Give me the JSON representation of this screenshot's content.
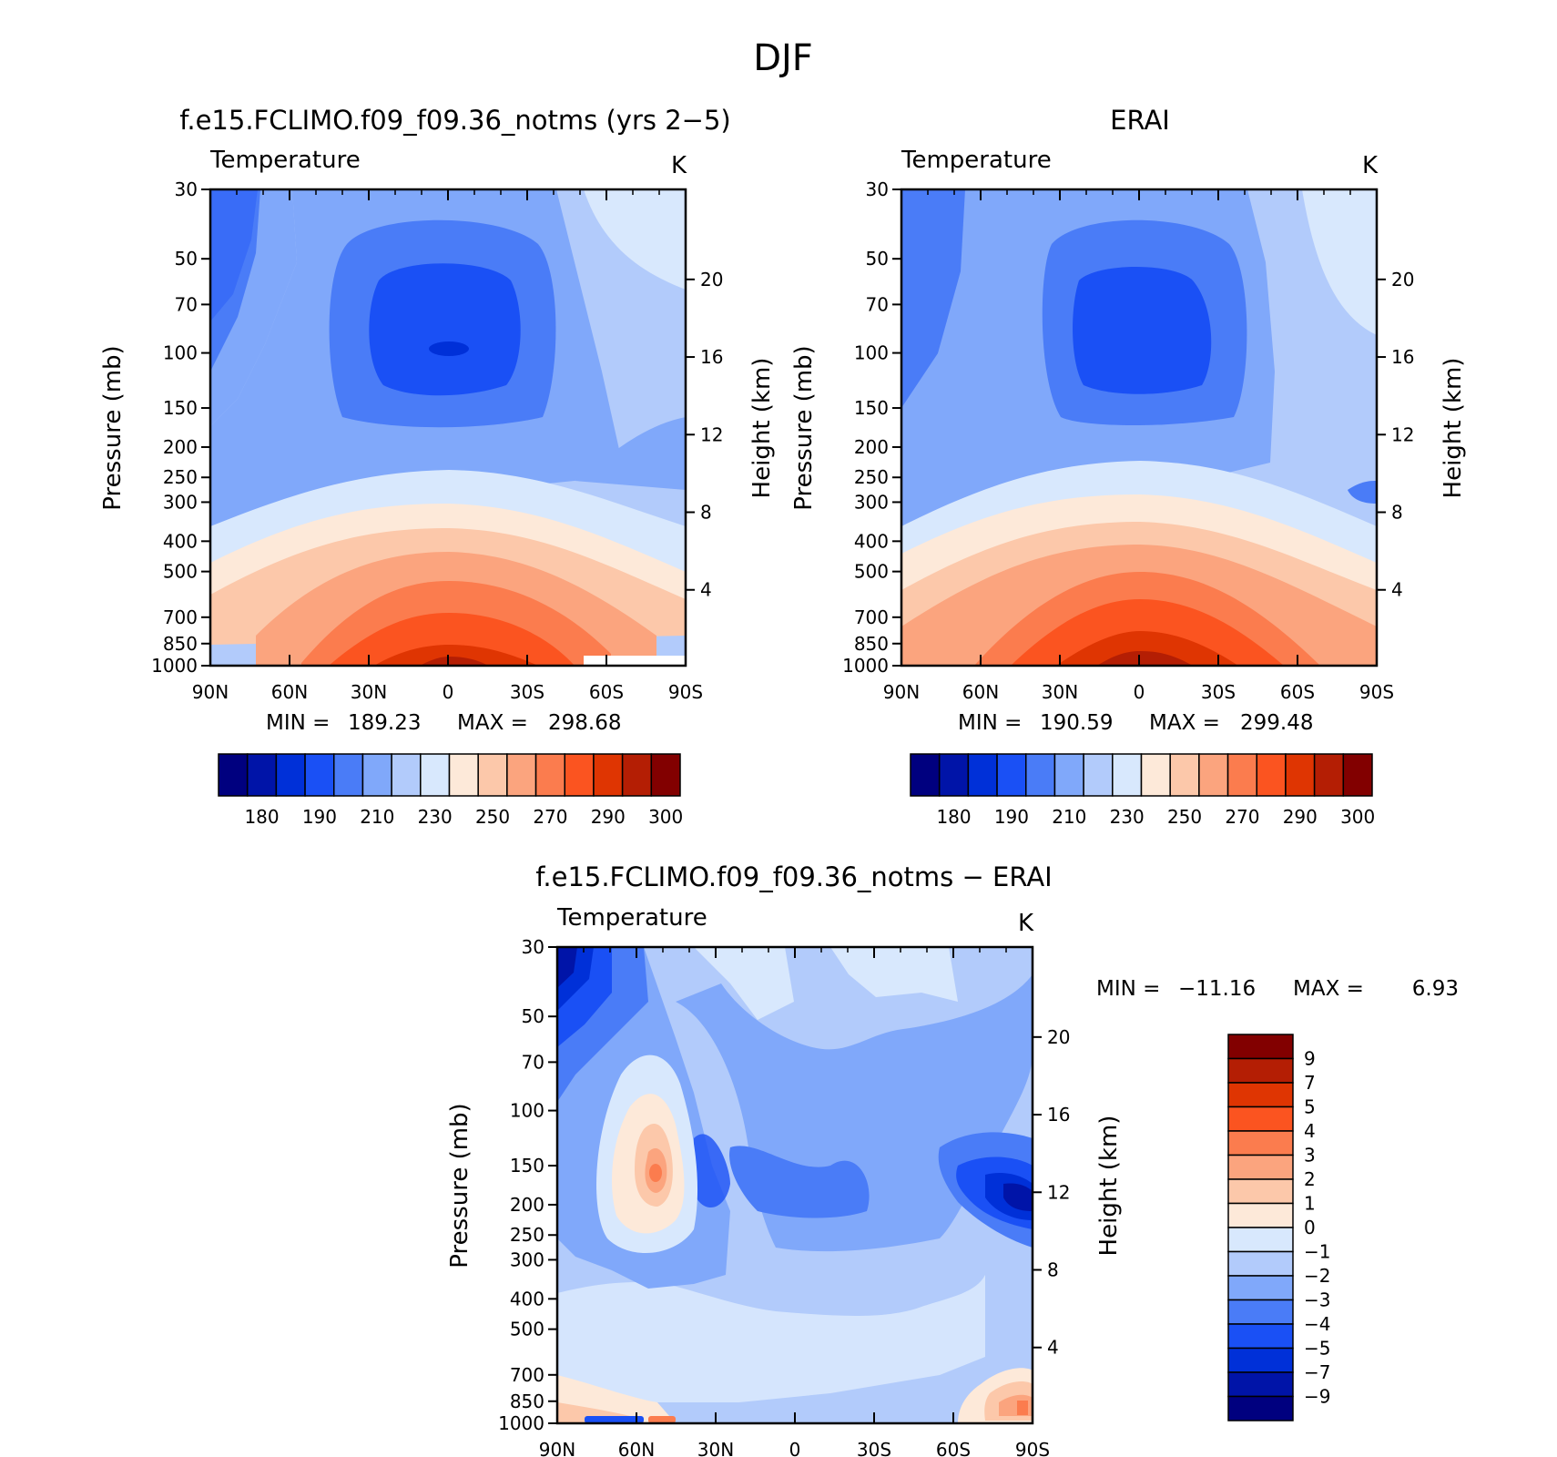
{
  "figure_title": "DJF",
  "chart_data": [
    {
      "type": "heatmap",
      "title": "f.e15.FCLIMO.f09_f09.36_notms (yrs 2−5)",
      "left_label": "Temperature",
      "units": "K",
      "ylabel": "Pressure (mb)",
      "ylabel_right": "Height (km)",
      "x_ticks": [
        "90N",
        "60N",
        "30N",
        "0",
        "30S",
        "60S",
        "90S"
      ],
      "y_ticks": [
        30,
        50,
        70,
        100,
        150,
        200,
        250,
        300,
        400,
        500,
        700,
        850,
        1000
      ],
      "height_ticks": [
        4,
        8,
        12,
        16,
        20
      ],
      "log_scale": true,
      "ylim": [
        1000,
        30
      ],
      "min_label": "MIN =",
      "min_value": "189.23",
      "max_label": "MAX =",
      "max_value": "298.68",
      "colorbar": {
        "labels": [
          "180",
          "190",
          "210",
          "230",
          "250",
          "270",
          "290",
          "300"
        ],
        "colors": [
          "#00007f",
          "#0014a8",
          "#0030d8",
          "#1a50f5",
          "#4a7cf7",
          "#80a8fa",
          "#b2cbfb",
          "#d8e8fd",
          "#fde9d9",
          "#fcc8aa",
          "#fba47e",
          "#fb7c4e",
          "#fb5420",
          "#df3502",
          "#b41e04",
          "#820000"
        ]
      }
    },
    {
      "type": "heatmap",
      "title": "ERAI",
      "left_label": "Temperature",
      "units": "K",
      "ylabel": "Pressure (mb)",
      "ylabel_right": "Height (km)",
      "x_ticks": [
        "90N",
        "60N",
        "30N",
        "0",
        "30S",
        "60S",
        "90S"
      ],
      "y_ticks": [
        30,
        50,
        70,
        100,
        150,
        200,
        250,
        300,
        400,
        500,
        700,
        850,
        1000
      ],
      "height_ticks": [
        4,
        8,
        12,
        16,
        20
      ],
      "log_scale": true,
      "ylim": [
        1000,
        30
      ],
      "min_label": "MIN =",
      "min_value": "190.59",
      "max_label": "MAX =",
      "max_value": "299.48",
      "colorbar": {
        "labels": [
          "180",
          "190",
          "210",
          "230",
          "250",
          "270",
          "290",
          "300"
        ],
        "colors": [
          "#00007f",
          "#0014a8",
          "#0030d8",
          "#1a50f5",
          "#4a7cf7",
          "#80a8fa",
          "#b2cbfb",
          "#d8e8fd",
          "#fde9d9",
          "#fcc8aa",
          "#fba47e",
          "#fb7c4e",
          "#fb5420",
          "#df3502",
          "#b41e04",
          "#820000"
        ]
      }
    },
    {
      "type": "heatmap",
      "title": "f.e15.FCLIMO.f09_f09.36_notms − ERAI",
      "left_label": "Temperature",
      "units": "K",
      "ylabel": "Pressure (mb)",
      "ylabel_right": "Height (km)",
      "x_ticks": [
        "90N",
        "60N",
        "30N",
        "0",
        "30S",
        "60S",
        "90S"
      ],
      "y_ticks": [
        30,
        50,
        70,
        100,
        150,
        200,
        250,
        300,
        400,
        500,
        700,
        850,
        1000
      ],
      "height_ticks": [
        4,
        8,
        12,
        16,
        20
      ],
      "log_scale": true,
      "ylim": [
        1000,
        30
      ],
      "min_label": "MIN =",
      "min_value": "−11.16",
      "max_label": "MAX =",
      "max_value": "6.93",
      "colorbar": {
        "labels": [
          "9",
          "7",
          "5",
          "4",
          "3",
          "2",
          "1",
          "0",
          "−1",
          "−2",
          "−3",
          "−4",
          "−5",
          "−7",
          "−9"
        ],
        "colors": [
          "#820000",
          "#b41e04",
          "#df3502",
          "#fb5420",
          "#fb7c4e",
          "#fba47e",
          "#fcc8aa",
          "#fde9d9",
          "#d8e8fd",
          "#b2cbfb",
          "#80a8fa",
          "#4a7cf7",
          "#1a50f5",
          "#0030d8",
          "#0014a8",
          "#00007f"
        ]
      }
    }
  ]
}
